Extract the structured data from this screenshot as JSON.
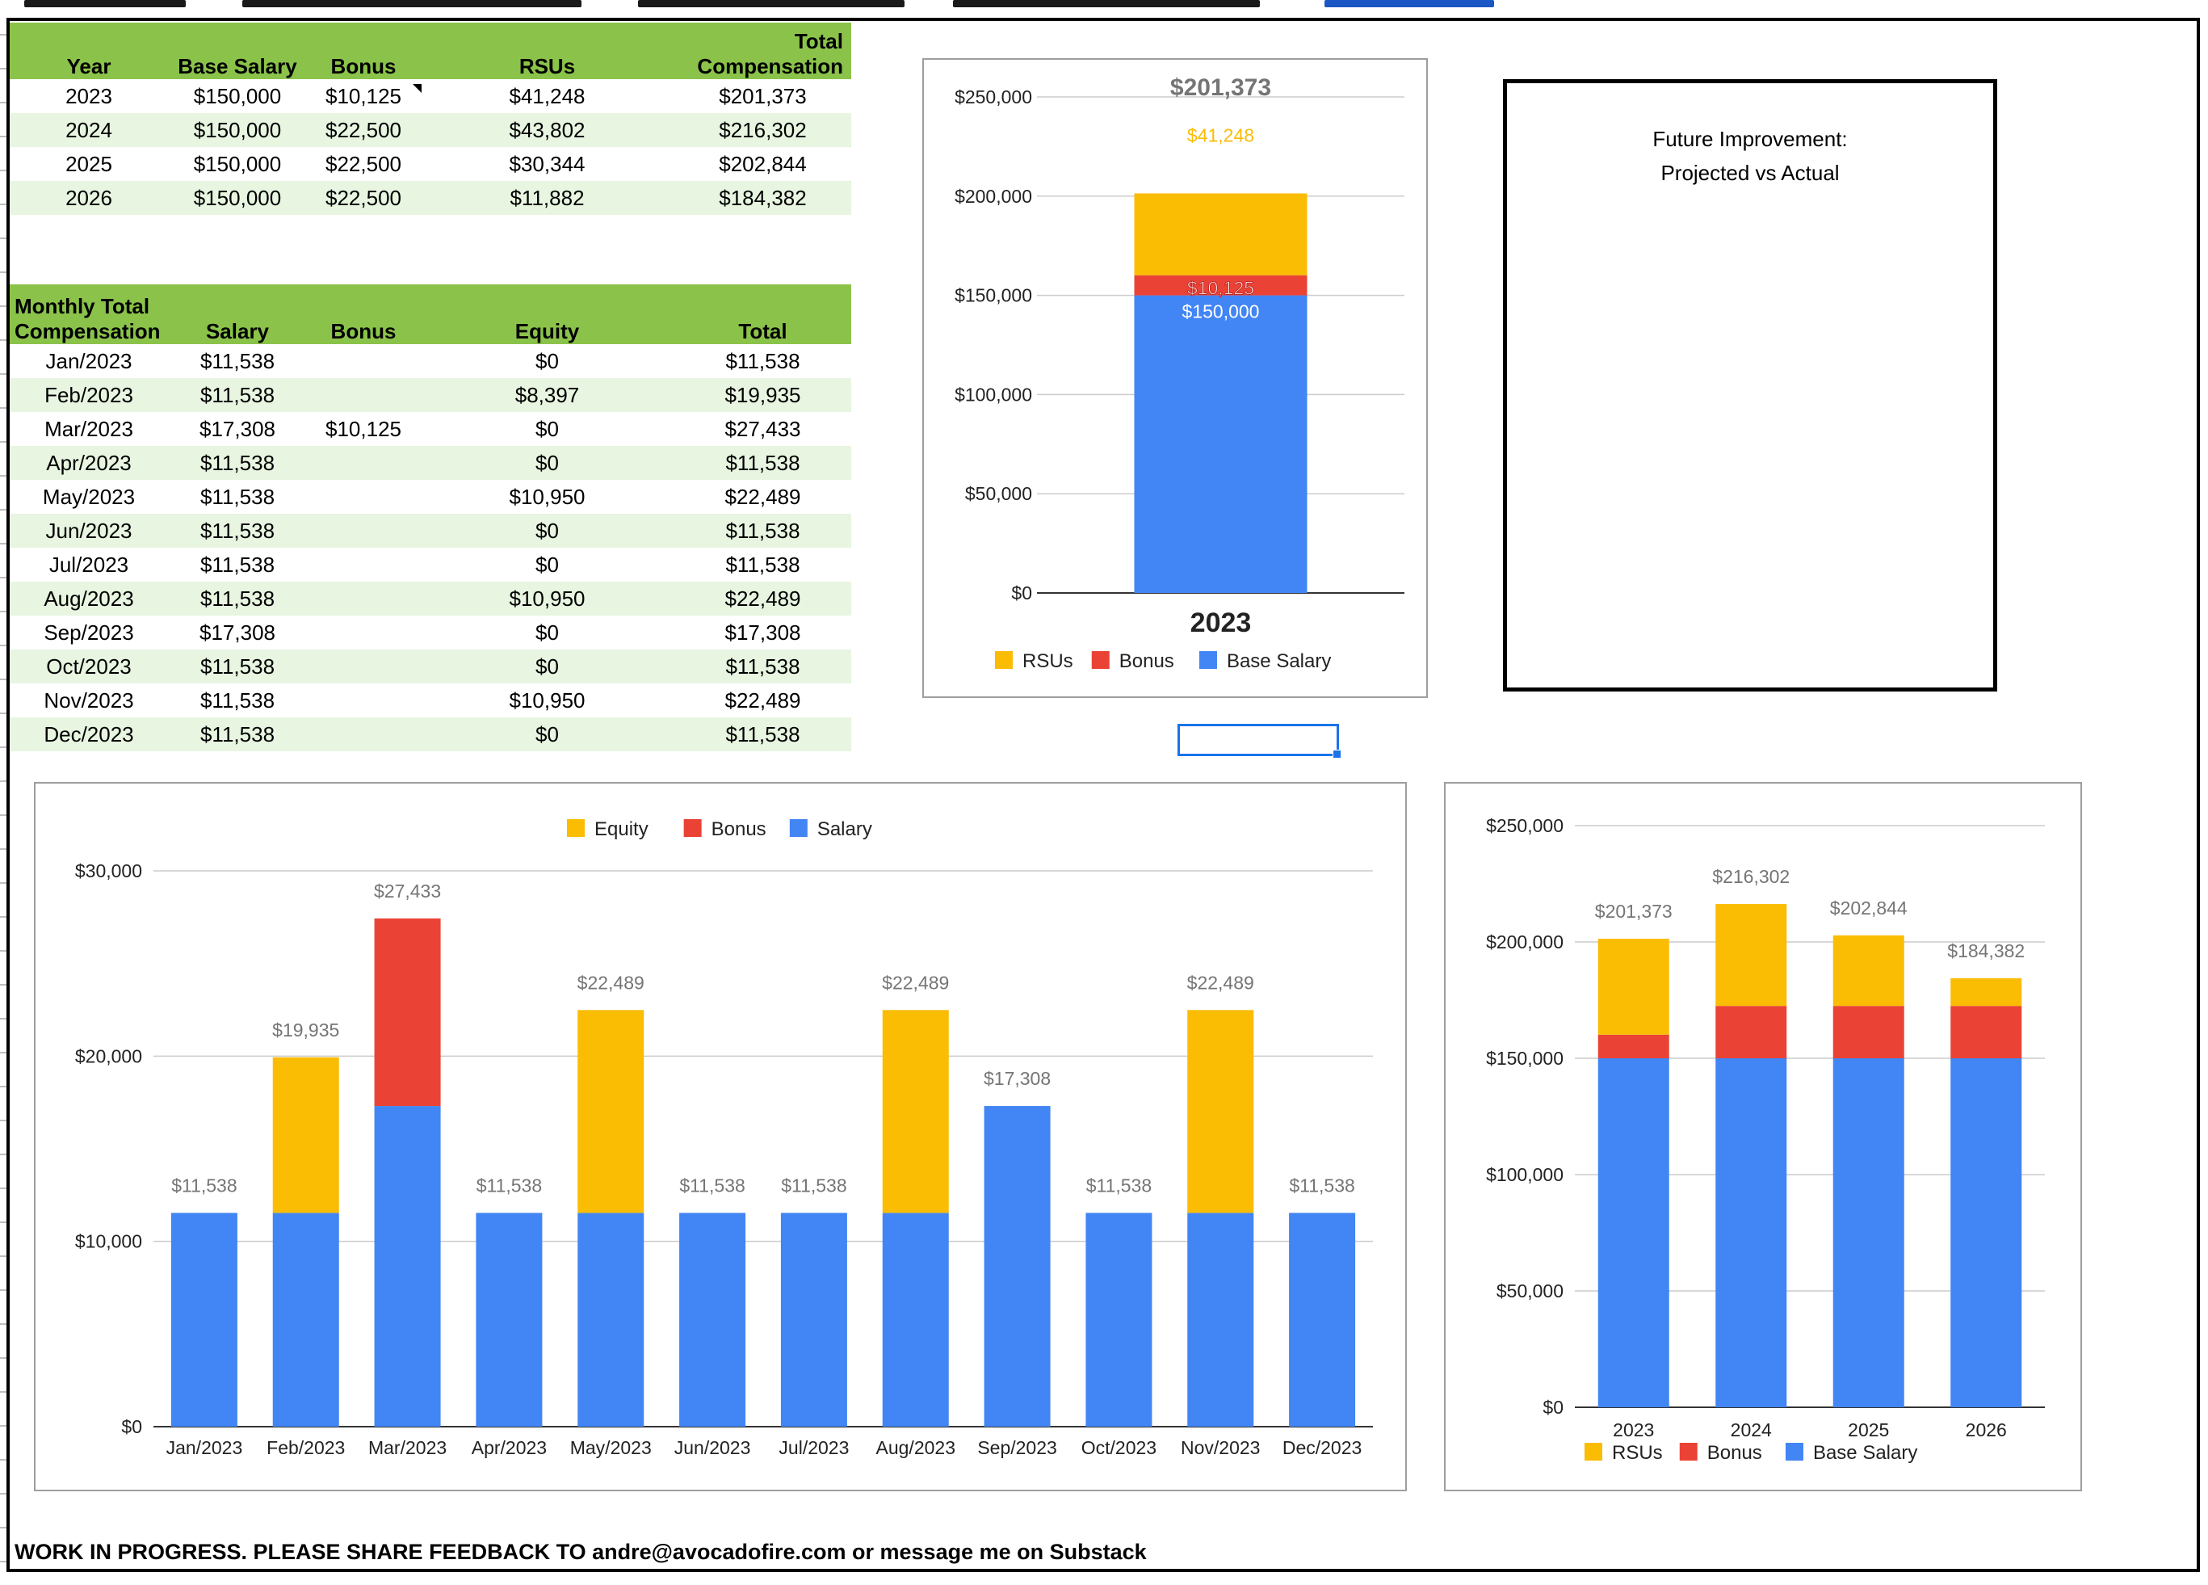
{
  "annual_table": {
    "headers": [
      "Year",
      "Base Salary",
      "Bonus",
      "RSUs",
      "Total Compensation"
    ],
    "rows": [
      [
        "2023",
        "$150,000",
        "$10,125",
        "$41,248",
        "$201,373"
      ],
      [
        "2024",
        "$150,000",
        "$22,500",
        "$43,802",
        "$216,302"
      ],
      [
        "2025",
        "$150,000",
        "$22,500",
        "$30,344",
        "$202,844"
      ],
      [
        "2026",
        "$150,000",
        "$22,500",
        "$11,882",
        "$184,382"
      ]
    ]
  },
  "monthly_table": {
    "headers": [
      "Monthly Total Compensation",
      "Salary",
      "Bonus",
      "Equity",
      "Total"
    ],
    "rows": [
      [
        "Jan/2023",
        "$11,538",
        "",
        "$0",
        "$11,538"
      ],
      [
        "Feb/2023",
        "$11,538",
        "",
        "$8,397",
        "$19,935"
      ],
      [
        "Mar/2023",
        "$17,308",
        "$10,125",
        "$0",
        "$27,433"
      ],
      [
        "Apr/2023",
        "$11,538",
        "",
        "$0",
        "$11,538"
      ],
      [
        "May/2023",
        "$11,538",
        "",
        "$10,950",
        "$22,489"
      ],
      [
        "Jun/2023",
        "$11,538",
        "",
        "$0",
        "$11,538"
      ],
      [
        "Jul/2023",
        "$11,538",
        "",
        "$0",
        "$11,538"
      ],
      [
        "Aug/2023",
        "$11,538",
        "",
        "$10,950",
        "$22,489"
      ],
      [
        "Sep/2023",
        "$17,308",
        "",
        "$0",
        "$17,308"
      ],
      [
        "Oct/2023",
        "$11,538",
        "",
        "$0",
        "$11,538"
      ],
      [
        "Nov/2023",
        "$11,538",
        "",
        "$10,950",
        "$22,489"
      ],
      [
        "Dec/2023",
        "$11,538",
        "",
        "$0",
        "$11,538"
      ]
    ]
  },
  "note_box": {
    "line1": "Future Improvement:",
    "line2": "Projected vs Actual"
  },
  "footer": "WORK IN PROGRESS. PLEASE SHARE FEEDBACK TO andre@avocadofire.com or message me on Substack",
  "colors": {
    "rsu": "#fbbc04",
    "bonus": "#ea4335",
    "salary": "#4285f4",
    "header_green": "#8bc34a",
    "alt_row": "#e8f5e1"
  },
  "chart_data": [
    {
      "id": "year-2023",
      "type": "bar",
      "stacked": true,
      "categories": [
        "2023"
      ],
      "series": [
        {
          "name": "Base Salary",
          "values": [
            150000
          ],
          "labels": [
            "$150,000"
          ],
          "color": "#4285f4"
        },
        {
          "name": "Bonus",
          "values": [
            10125
          ],
          "labels": [
            "$10,125"
          ],
          "color": "#ea4335"
        },
        {
          "name": "RSUs",
          "values": [
            41248
          ],
          "labels": [
            "$41,248"
          ],
          "color": "#fbbc04"
        }
      ],
      "totals": [
        "$201,373"
      ],
      "ylim": [
        0,
        250000
      ],
      "yticks": [
        0,
        50000,
        100000,
        150000,
        200000,
        250000
      ],
      "ytick_labels": [
        "$0",
        "$50,000",
        "$100,000",
        "$150,000",
        "$200,000",
        "$250,000"
      ],
      "legend": [
        "RSUs",
        "Bonus",
        "Base Salary"
      ],
      "legend_position": "bottom",
      "grid": true
    },
    {
      "id": "monthly",
      "type": "bar",
      "stacked": true,
      "categories": [
        "Jan/2023",
        "Feb/2023",
        "Mar/2023",
        "Apr/2023",
        "May/2023",
        "Jun/2023",
        "Jul/2023",
        "Aug/2023",
        "Sep/2023",
        "Oct/2023",
        "Nov/2023",
        "Dec/2023"
      ],
      "series": [
        {
          "name": "Salary",
          "values": [
            11538,
            11538,
            17308,
            11538,
            11538,
            11538,
            11538,
            11538,
            17308,
            11538,
            11538,
            11538
          ],
          "color": "#4285f4"
        },
        {
          "name": "Bonus",
          "values": [
            0,
            0,
            10125,
            0,
            0,
            0,
            0,
            0,
            0,
            0,
            0,
            0
          ],
          "color": "#ea4335"
        },
        {
          "name": "Equity",
          "values": [
            0,
            8397,
            0,
            0,
            10950,
            0,
            0,
            10950,
            0,
            0,
            10950,
            0
          ],
          "color": "#fbbc04"
        }
      ],
      "totals": [
        "$11,538",
        "$19,935",
        "$27,433",
        "$11,538",
        "$22,489",
        "$11,538",
        "$11,538",
        "$22,489",
        "$17,308",
        "$11,538",
        "$22,489",
        "$11,538"
      ],
      "ylim": [
        0,
        30000
      ],
      "yticks": [
        0,
        10000,
        20000,
        30000
      ],
      "ytick_labels": [
        "$0",
        "$10,000",
        "$20,000",
        "$30,000"
      ],
      "legend": [
        "Equity",
        "Bonus",
        "Salary"
      ],
      "legend_position": "top",
      "grid": true
    },
    {
      "id": "annual",
      "type": "bar",
      "stacked": true,
      "categories": [
        "2023",
        "2024",
        "2025",
        "2026"
      ],
      "series": [
        {
          "name": "Base Salary",
          "values": [
            150000,
            150000,
            150000,
            150000
          ],
          "color": "#4285f4"
        },
        {
          "name": "Bonus",
          "values": [
            10125,
            22500,
            22500,
            22500
          ],
          "color": "#ea4335"
        },
        {
          "name": "RSUs",
          "values": [
            41248,
            43802,
            30344,
            11882
          ],
          "color": "#fbbc04"
        }
      ],
      "totals": [
        "$201,373",
        "$216,302",
        "$202,844",
        "$184,382"
      ],
      "ylim": [
        0,
        250000
      ],
      "yticks": [
        0,
        50000,
        100000,
        150000,
        200000,
        250000
      ],
      "ytick_labels": [
        "$0",
        "$50,000",
        "$100,000",
        "$150,000",
        "$200,000",
        "$250,000"
      ],
      "legend": [
        "RSUs",
        "Bonus",
        "Base Salary"
      ],
      "legend_position": "bottom",
      "grid": true
    }
  ]
}
